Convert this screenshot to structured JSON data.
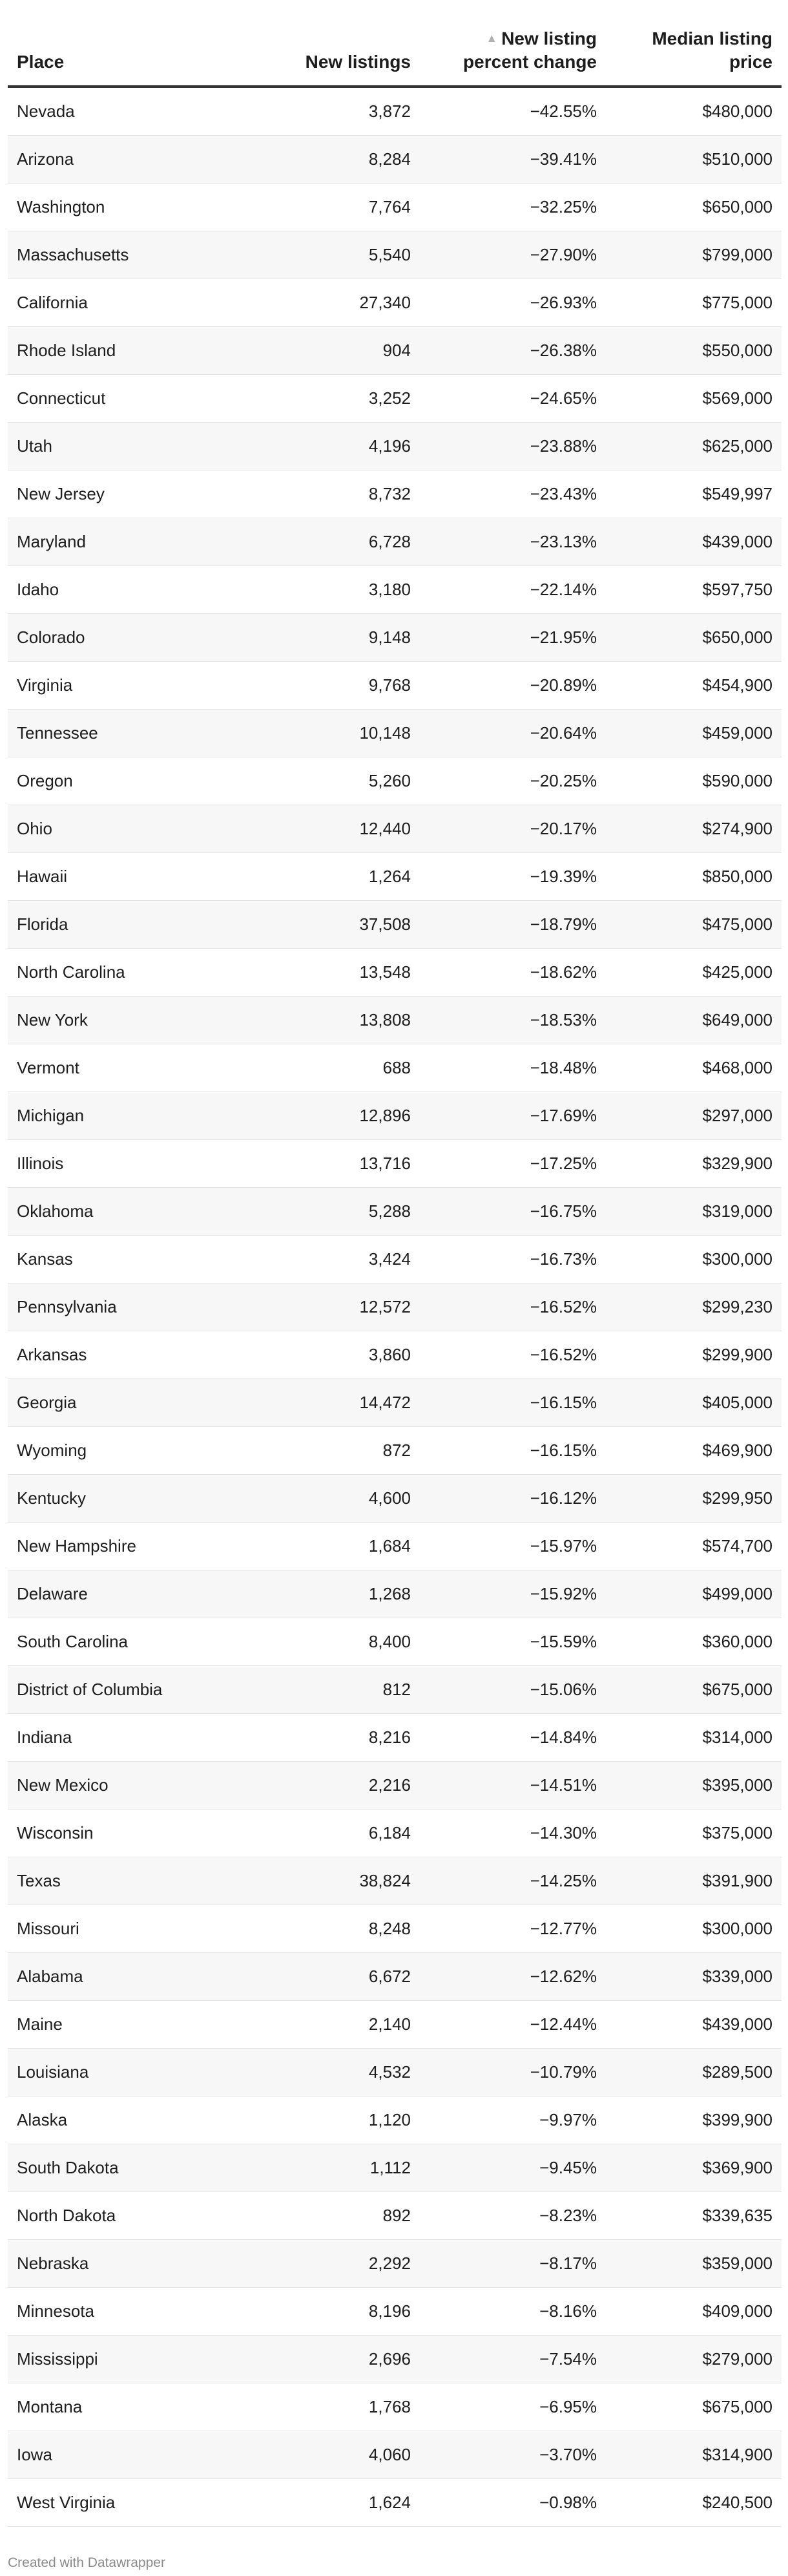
{
  "chart_data": {
    "type": "table",
    "columns": [
      "Place",
      "New listings",
      "New listing percent change",
      "Median listing price"
    ],
    "header_lines": {
      "place": [
        "Place"
      ],
      "listings": [
        "New listings"
      ],
      "change": [
        "New listing",
        "percent change"
      ],
      "price": [
        "Median listing",
        "price"
      ]
    },
    "sort_indicator": "▲",
    "rows": [
      {
        "place": "Nevada",
        "listings": "3,872",
        "change": "−42.55%",
        "price": "$480,000"
      },
      {
        "place": "Arizona",
        "listings": "8,284",
        "change": "−39.41%",
        "price": "$510,000"
      },
      {
        "place": "Washington",
        "listings": "7,764",
        "change": "−32.25%",
        "price": "$650,000"
      },
      {
        "place": "Massachusetts",
        "listings": "5,540",
        "change": "−27.90%",
        "price": "$799,000"
      },
      {
        "place": "California",
        "listings": "27,340",
        "change": "−26.93%",
        "price": "$775,000"
      },
      {
        "place": "Rhode Island",
        "listings": "904",
        "change": "−26.38%",
        "price": "$550,000"
      },
      {
        "place": "Connecticut",
        "listings": "3,252",
        "change": "−24.65%",
        "price": "$569,000"
      },
      {
        "place": "Utah",
        "listings": "4,196",
        "change": "−23.88%",
        "price": "$625,000"
      },
      {
        "place": "New Jersey",
        "listings": "8,732",
        "change": "−23.43%",
        "price": "$549,997"
      },
      {
        "place": "Maryland",
        "listings": "6,728",
        "change": "−23.13%",
        "price": "$439,000"
      },
      {
        "place": "Idaho",
        "listings": "3,180",
        "change": "−22.14%",
        "price": "$597,750"
      },
      {
        "place": "Colorado",
        "listings": "9,148",
        "change": "−21.95%",
        "price": "$650,000"
      },
      {
        "place": "Virginia",
        "listings": "9,768",
        "change": "−20.89%",
        "price": "$454,900"
      },
      {
        "place": "Tennessee",
        "listings": "10,148",
        "change": "−20.64%",
        "price": "$459,000"
      },
      {
        "place": "Oregon",
        "listings": "5,260",
        "change": "−20.25%",
        "price": "$590,000"
      },
      {
        "place": "Ohio",
        "listings": "12,440",
        "change": "−20.17%",
        "price": "$274,900"
      },
      {
        "place": "Hawaii",
        "listings": "1,264",
        "change": "−19.39%",
        "price": "$850,000"
      },
      {
        "place": "Florida",
        "listings": "37,508",
        "change": "−18.79%",
        "price": "$475,000"
      },
      {
        "place": "North Carolina",
        "listings": "13,548",
        "change": "−18.62%",
        "price": "$425,000"
      },
      {
        "place": "New York",
        "listings": "13,808",
        "change": "−18.53%",
        "price": "$649,000"
      },
      {
        "place": "Vermont",
        "listings": "688",
        "change": "−18.48%",
        "price": "$468,000"
      },
      {
        "place": "Michigan",
        "listings": "12,896",
        "change": "−17.69%",
        "price": "$297,000"
      },
      {
        "place": "Illinois",
        "listings": "13,716",
        "change": "−17.25%",
        "price": "$329,900"
      },
      {
        "place": "Oklahoma",
        "listings": "5,288",
        "change": "−16.75%",
        "price": "$319,000"
      },
      {
        "place": "Kansas",
        "listings": "3,424",
        "change": "−16.73%",
        "price": "$300,000"
      },
      {
        "place": "Pennsylvania",
        "listings": "12,572",
        "change": "−16.52%",
        "price": "$299,230"
      },
      {
        "place": "Arkansas",
        "listings": "3,860",
        "change": "−16.52%",
        "price": "$299,900"
      },
      {
        "place": "Georgia",
        "listings": "14,472",
        "change": "−16.15%",
        "price": "$405,000"
      },
      {
        "place": "Wyoming",
        "listings": "872",
        "change": "−16.15%",
        "price": "$469,900"
      },
      {
        "place": "Kentucky",
        "listings": "4,600",
        "change": "−16.12%",
        "price": "$299,950"
      },
      {
        "place": "New Hampshire",
        "listings": "1,684",
        "change": "−15.97%",
        "price": "$574,700"
      },
      {
        "place": "Delaware",
        "listings": "1,268",
        "change": "−15.92%",
        "price": "$499,000"
      },
      {
        "place": "South Carolina",
        "listings": "8,400",
        "change": "−15.59%",
        "price": "$360,000"
      },
      {
        "place": "District of Columbia",
        "listings": "812",
        "change": "−15.06%",
        "price": "$675,000"
      },
      {
        "place": "Indiana",
        "listings": "8,216",
        "change": "−14.84%",
        "price": "$314,000"
      },
      {
        "place": "New Mexico",
        "listings": "2,216",
        "change": "−14.51%",
        "price": "$395,000"
      },
      {
        "place": "Wisconsin",
        "listings": "6,184",
        "change": "−14.30%",
        "price": "$375,000"
      },
      {
        "place": "Texas",
        "listings": "38,824",
        "change": "−14.25%",
        "price": "$391,900"
      },
      {
        "place": "Missouri",
        "listings": "8,248",
        "change": "−12.77%",
        "price": "$300,000"
      },
      {
        "place": "Alabama",
        "listings": "6,672",
        "change": "−12.62%",
        "price": "$339,000"
      },
      {
        "place": "Maine",
        "listings": "2,140",
        "change": "−12.44%",
        "price": "$439,000"
      },
      {
        "place": "Louisiana",
        "listings": "4,532",
        "change": "−10.79%",
        "price": "$289,500"
      },
      {
        "place": "Alaska",
        "listings": "1,120",
        "change": "−9.97%",
        "price": "$399,900"
      },
      {
        "place": "South Dakota",
        "listings": "1,112",
        "change": "−9.45%",
        "price": "$369,900"
      },
      {
        "place": "North Dakota",
        "listings": "892",
        "change": "−8.23%",
        "price": "$339,635"
      },
      {
        "place": "Nebraska",
        "listings": "2,292",
        "change": "−8.17%",
        "price": "$359,000"
      },
      {
        "place": "Minnesota",
        "listings": "8,196",
        "change": "−8.16%",
        "price": "$409,000"
      },
      {
        "place": "Mississippi",
        "listings": "2,696",
        "change": "−7.54%",
        "price": "$279,000"
      },
      {
        "place": "Montana",
        "listings": "1,768",
        "change": "−6.95%",
        "price": "$675,000"
      },
      {
        "place": "Iowa",
        "listings": "4,060",
        "change": "−3.70%",
        "price": "$314,900"
      },
      {
        "place": "West Virginia",
        "listings": "1,624",
        "change": "−0.98%",
        "price": "$240,500"
      }
    ]
  },
  "footer": {
    "credit": "Created with Datawrapper"
  },
  "colors": {
    "header_rule": "#333333",
    "row_alt": "#f7f7f7",
    "row_divider": "#e4e4e4",
    "sort_icon": "#b0b0b0",
    "footer_text": "#8a8a8a"
  }
}
